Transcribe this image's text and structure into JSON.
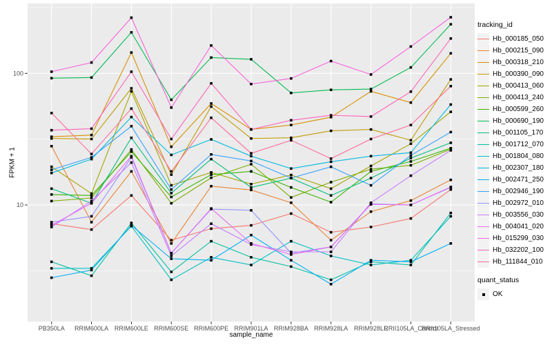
{
  "figure": {
    "background": "#FFFFFF",
    "panel_background": "#EBEBEB",
    "grid_color": "#FFFFFF",
    "tick_color": "#333333",
    "tick_label_color": "#4D4D4D",
    "point_color": "#000000"
  },
  "chart_data": {
    "type": "line",
    "title": "",
    "xlabel": "sample_name",
    "ylabel": "FPKM + 1",
    "y_scale": "log10",
    "ylim": [
      1.3,
      340
    ],
    "y_major_ticks": [
      10,
      100
    ],
    "y_minor_ticks": [
      3.162,
      31.62,
      316.2
    ],
    "grid": true,
    "legend_position": "right",
    "legend_title": "tracking_id",
    "point_shape": "filled-square",
    "x_categories": [
      "PB350LA",
      "RRIM600LA",
      "RRIM600LE",
      "RRIM600SE",
      "RRIM600PE",
      "RRIM901LA",
      "RRIM928BA",
      "RRIM928LA",
      "RRIM928LE",
      "RRII105LA_Control",
      "RRII105LA_Stressed"
    ],
    "series": [
      {
        "name": "Hb_000185_050",
        "color": "#F8766D",
        "values": [
          7.2,
          6.5,
          11.8,
          5.4,
          6.6,
          7.0,
          8.6,
          6.2,
          6.8,
          7.9,
          13.1
        ]
      },
      {
        "name": "Hb_000215_090",
        "color": "#EA8331",
        "values": [
          28.0,
          7.4,
          18.0,
          5.1,
          13.9,
          13.0,
          10.4,
          5.4,
          8.9,
          10.8,
          15.5
        ]
      },
      {
        "name": "Hb_000318_210",
        "color": "#D89000",
        "values": [
          33.0,
          34.0,
          144.0,
          27.7,
          59.0,
          37.5,
          40.5,
          46.5,
          73.0,
          60.0,
          142.0
        ]
      },
      {
        "name": "Hb_000390_090",
        "color": "#C09B00",
        "values": [
          32.0,
          31.7,
          77.0,
          17.0,
          56.0,
          32.0,
          32.4,
          36.6,
          37.5,
          31.0,
          90.0
        ]
      },
      {
        "name": "Hb_000413_060",
        "color": "#A3A500",
        "values": [
          19.5,
          12.2,
          73.0,
          14.1,
          17.7,
          14.4,
          16.9,
          13.3,
          19.8,
          29.2,
          51.0
        ]
      },
      {
        "name": "Hb_000413_240",
        "color": "#7CAE00",
        "values": [
          10.7,
          11.3,
          26.4,
          10.3,
          16.1,
          20.4,
          11.4,
          14.9,
          18.7,
          20.0,
          26.5
        ]
      },
      {
        "name": "Hb_000599_260",
        "color": "#39B600",
        "values": [
          12.0,
          11.8,
          25.4,
          11.5,
          17.0,
          18.0,
          13.6,
          10.5,
          18.0,
          21.4,
          27.0
        ]
      },
      {
        "name": "Hb_000690_190",
        "color": "#00BB4E",
        "values": [
          92.0,
          93.0,
          205.0,
          63.0,
          132.0,
          128.0,
          71.0,
          75.0,
          76.0,
          111.0,
          236.0
        ]
      },
      {
        "name": "Hb_001105_170",
        "color": "#00BF7D",
        "values": [
          13.3,
          10.3,
          32.4,
          12.3,
          22.3,
          13.6,
          16.0,
          11.8,
          16.0,
          22.7,
          29.7
        ]
      },
      {
        "name": "Hb_001712_070",
        "color": "#00C1A3",
        "values": [
          3.7,
          2.9,
          7.3,
          3.1,
          5.3,
          4.0,
          3.4,
          2.7,
          3.7,
          3.5,
          8.7
        ]
      },
      {
        "name": "Hb_001804_080",
        "color": "#00BFC4",
        "values": [
          3.3,
          3.3,
          6.9,
          2.7,
          4.0,
          3.5,
          5.3,
          4.1,
          3.5,
          3.8,
          8.2
        ]
      },
      {
        "name": "Hb_002307_180",
        "color": "#00BAE0",
        "values": [
          17.5,
          22.3,
          46.6,
          24.0,
          31.5,
          23.5,
          18.9,
          21.3,
          23.5,
          25.0,
          58.0
        ]
      },
      {
        "name": "Hb_002471_250",
        "color": "#00B0F6",
        "values": [
          2.8,
          3.2,
          7.0,
          3.9,
          3.8,
          5.9,
          3.8,
          2.5,
          3.8,
          3.7,
          5.1
        ]
      },
      {
        "name": "Hb_002946_190",
        "color": "#35A2FF",
        "values": [
          18.5,
          23.0,
          39.7,
          13.1,
          24.2,
          21.6,
          16.0,
          19.5,
          14.1,
          23.8,
          35.8
        ]
      },
      {
        "name": "Hb_002972_010",
        "color": "#9590FF",
        "values": [
          7.4,
          8.2,
          23.0,
          4.3,
          9.3,
          9.1,
          4.3,
          4.8,
          10.2,
          10.0,
          13.6
        ]
      },
      {
        "name": "Hb_003556_030",
        "color": "#C77CFF",
        "values": [
          6.8,
          10.7,
          21.0,
          4.1,
          7.2,
          5.0,
          4.4,
          4.4,
          10.4,
          16.7,
          26.0
        ]
      },
      {
        "name": "Hb_004041_020",
        "color": "#E76BF3",
        "values": [
          7.0,
          10.3,
          23.5,
          4.3,
          9.4,
          5.1,
          4.2,
          4.8,
          10.1,
          10.0,
          13.7
        ]
      },
      {
        "name": "Hb_015299_030",
        "color": "#FA62DB",
        "values": [
          103.0,
          121.0,
          265.0,
          55.0,
          163.0,
          83.0,
          91.5,
          124.0,
          98.0,
          160.0,
          267.0
        ]
      },
      {
        "name": "Hb_032202_100",
        "color": "#FF62BC",
        "values": [
          37.0,
          38.0,
          103.0,
          31.7,
          84.0,
          37.5,
          44.0,
          48.0,
          47.0,
          72.7,
          184.0
        ]
      },
      {
        "name": "Hb_111844_010",
        "color": "#FF6A98",
        "values": [
          50.0,
          24.4,
          54.0,
          18.0,
          46.0,
          24.7,
          31.0,
          22.5,
          31.7,
          40.5,
          80.0
        ]
      }
    ],
    "quant_legend": {
      "title": "quant_status",
      "items": [
        {
          "label": "OK",
          "shape": "filled-square"
        }
      ]
    }
  }
}
